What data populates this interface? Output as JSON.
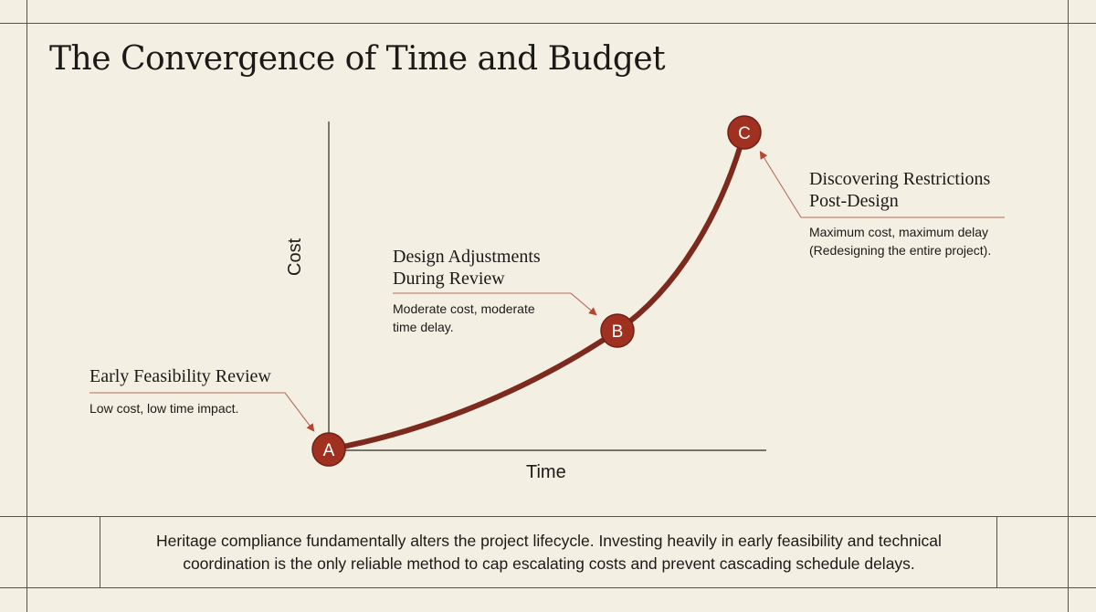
{
  "page": {
    "title": "The Convergence of Time and Budget"
  },
  "colors": {
    "background": "#f3efe3",
    "accent": "#8e3c30",
    "curve": "#7d2a1e",
    "marker_fill": "#a0301f",
    "text": "#1b1a17"
  },
  "diagram": {
    "y_axis_label": "Cost",
    "x_axis_label": "Time",
    "points": [
      {
        "marker": "A",
        "title": "Early Feasibility Review",
        "description": "Low cost, low time impact."
      },
      {
        "marker": "B",
        "title_lines": [
          "Design Adjustments",
          "During Review"
        ],
        "description_lines": [
          "Moderate cost, moderate",
          "time delay."
        ]
      },
      {
        "marker": "C",
        "title_lines": [
          "Discovering Restrictions",
          "Post-Design"
        ],
        "description_lines": [
          "Maximum cost, maximum delay",
          "(Redesigning the entire project)."
        ]
      }
    ]
  },
  "footer": {
    "line1": "Heritage compliance fundamentally alters the project lifecycle. Investing heavily in early feasibility and technical",
    "line2": "coordination is the only reliable method to cap escalating costs and prevent cascading schedule delays."
  }
}
